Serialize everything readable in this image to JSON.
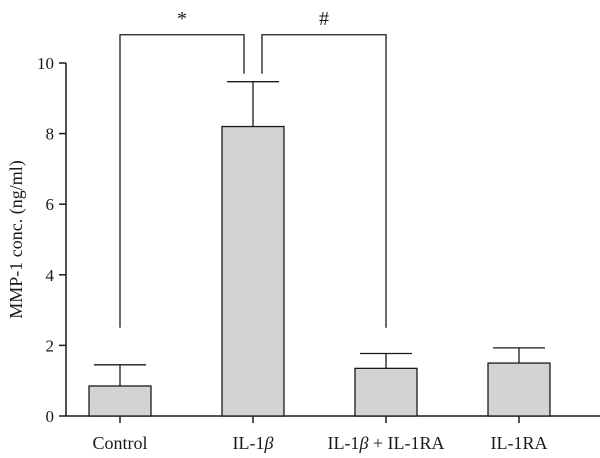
{
  "chart_data": {
    "type": "bar",
    "ylabel": "MMP-1 conc. (ng/ml)",
    "ylim": [
      0,
      10
    ],
    "yticks": [
      0,
      2,
      4,
      6,
      8,
      10
    ],
    "categories": [
      {
        "parts": [
          {
            "t": "Control",
            "i": false
          }
        ]
      },
      {
        "parts": [
          {
            "t": "IL-1",
            "i": false
          },
          {
            "t": "β",
            "i": true
          }
        ]
      },
      {
        "parts": [
          {
            "t": "IL-1",
            "i": false
          },
          {
            "t": "β",
            "i": true
          },
          {
            "t": " + IL-1RA",
            "i": false
          }
        ]
      },
      {
        "parts": [
          {
            "t": "IL-1RA",
            "i": false
          }
        ]
      }
    ],
    "values": [
      0.85,
      8.2,
      1.35,
      1.5
    ],
    "errors": [
      0.6,
      1.27,
      0.42,
      0.43
    ],
    "bar_color": "#d3d3d3",
    "significance": [
      {
        "label": "*",
        "from": 0,
        "to": 1,
        "left_base": 2.5,
        "right_base": 9.7,
        "top": 10.8
      },
      {
        "label": "#",
        "from": 1,
        "to": 2,
        "left_base": 9.7,
        "right_base": 2.5,
        "top": 10.8
      }
    ]
  }
}
